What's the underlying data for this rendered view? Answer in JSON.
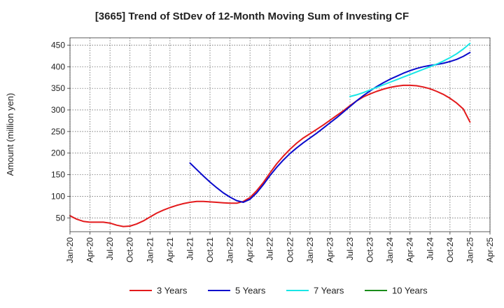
{
  "chart_data": {
    "type": "line",
    "title": "[3665]  Trend of StDev of 12-Month Moving Sum of Investing CF",
    "xlabel": "",
    "ylabel": "Amount (million yen)",
    "x_ticks": [
      "Jan-20",
      "Apr-20",
      "Jul-20",
      "Oct-20",
      "Jan-21",
      "Apr-21",
      "Jul-21",
      "Oct-21",
      "Jan-22",
      "Apr-22",
      "Jul-22",
      "Oct-22",
      "Jan-23",
      "Apr-23",
      "Jul-23",
      "Oct-23",
      "Jan-24",
      "Apr-24",
      "Jul-24",
      "Oct-24",
      "Jan-25",
      "Apr-25"
    ],
    "y_ticks": [
      50,
      100,
      150,
      200,
      250,
      300,
      350,
      400,
      450
    ],
    "xlim": [
      "2020-01",
      "2025-04"
    ],
    "ylim": [
      18,
      467
    ],
    "grid": true,
    "legend_position": "bottom",
    "series": [
      {
        "name": "3 Years",
        "color": "#e31a1c",
        "points": [
          [
            "2020-01",
            55
          ],
          [
            "2020-02",
            47
          ],
          [
            "2020-03",
            42
          ],
          [
            "2020-04",
            40
          ],
          [
            "2020-05",
            40
          ],
          [
            "2020-06",
            40
          ],
          [
            "2020-07",
            38
          ],
          [
            "2020-08",
            33
          ],
          [
            "2020-09",
            30
          ],
          [
            "2020-10",
            31
          ],
          [
            "2020-11",
            36
          ],
          [
            "2020-12",
            43
          ],
          [
            "2021-01",
            52
          ],
          [
            "2021-02",
            61
          ],
          [
            "2021-03",
            68
          ],
          [
            "2021-04",
            74
          ],
          [
            "2021-05",
            79
          ],
          [
            "2021-06",
            83
          ],
          [
            "2021-07",
            86
          ],
          [
            "2021-08",
            88
          ],
          [
            "2021-09",
            88
          ],
          [
            "2021-10",
            87
          ],
          [
            "2021-11",
            86
          ],
          [
            "2021-12",
            85
          ],
          [
            "2022-01",
            84
          ],
          [
            "2022-02",
            84
          ],
          [
            "2022-03",
            88
          ],
          [
            "2022-04",
            97
          ],
          [
            "2022-05",
            113
          ],
          [
            "2022-06",
            132
          ],
          [
            "2022-07",
            154
          ],
          [
            "2022-08",
            175
          ],
          [
            "2022-09",
            193
          ],
          [
            "2022-10",
            209
          ],
          [
            "2022-11",
            223
          ],
          [
            "2022-12",
            235
          ],
          [
            "2023-01",
            245
          ],
          [
            "2023-02",
            255
          ],
          [
            "2023-03",
            265
          ],
          [
            "2023-04",
            276
          ],
          [
            "2023-05",
            287
          ],
          [
            "2023-06",
            298
          ],
          [
            "2023-07",
            310
          ],
          [
            "2023-08",
            321
          ],
          [
            "2023-09",
            330
          ],
          [
            "2023-10",
            337
          ],
          [
            "2023-11",
            343
          ],
          [
            "2023-12",
            348
          ],
          [
            "2024-01",
            352
          ],
          [
            "2024-02",
            355
          ],
          [
            "2024-03",
            357
          ],
          [
            "2024-04",
            357
          ],
          [
            "2024-05",
            356
          ],
          [
            "2024-06",
            353
          ],
          [
            "2024-07",
            349
          ],
          [
            "2024-08",
            343
          ],
          [
            "2024-09",
            336
          ],
          [
            "2024-10",
            327
          ],
          [
            "2024-11",
            316
          ],
          [
            "2024-12",
            302
          ],
          [
            "2025-01",
            272
          ]
        ]
      },
      {
        "name": "5 Years",
        "color": "#0a0acc",
        "points": [
          [
            "2021-07",
            177
          ],
          [
            "2021-08",
            162
          ],
          [
            "2021-09",
            147
          ],
          [
            "2021-10",
            133
          ],
          [
            "2021-11",
            120
          ],
          [
            "2021-12",
            108
          ],
          [
            "2022-01",
            98
          ],
          [
            "2022-02",
            90
          ],
          [
            "2022-03",
            86
          ],
          [
            "2022-04",
            93
          ],
          [
            "2022-05",
            108
          ],
          [
            "2022-06",
            127
          ],
          [
            "2022-07",
            148
          ],
          [
            "2022-08",
            167
          ],
          [
            "2022-09",
            184
          ],
          [
            "2022-10",
            199
          ],
          [
            "2022-11",
            212
          ],
          [
            "2022-12",
            224
          ],
          [
            "2023-01",
            235
          ],
          [
            "2023-02",
            246
          ],
          [
            "2023-03",
            258
          ],
          [
            "2023-04",
            270
          ],
          [
            "2023-05",
            282
          ],
          [
            "2023-06",
            295
          ],
          [
            "2023-07",
            308
          ],
          [
            "2023-08",
            321
          ],
          [
            "2023-09",
            333
          ],
          [
            "2023-10",
            344
          ],
          [
            "2023-11",
            354
          ],
          [
            "2023-12",
            363
          ],
          [
            "2024-01",
            371
          ],
          [
            "2024-02",
            378
          ],
          [
            "2024-03",
            385
          ],
          [
            "2024-04",
            391
          ],
          [
            "2024-05",
            396
          ],
          [
            "2024-06",
            400
          ],
          [
            "2024-07",
            403
          ],
          [
            "2024-08",
            405
          ],
          [
            "2024-09",
            408
          ],
          [
            "2024-10",
            412
          ],
          [
            "2024-11",
            417
          ],
          [
            "2024-12",
            424
          ],
          [
            "2025-01",
            433
          ]
        ]
      },
      {
        "name": "7 Years",
        "color": "#19e6e6",
        "points": [
          [
            "2023-07",
            331
          ],
          [
            "2023-08",
            335
          ],
          [
            "2023-09",
            340
          ],
          [
            "2023-10",
            346
          ],
          [
            "2023-11",
            352
          ],
          [
            "2023-12",
            358
          ],
          [
            "2024-01",
            364
          ],
          [
            "2024-02",
            370
          ],
          [
            "2024-03",
            376
          ],
          [
            "2024-04",
            382
          ],
          [
            "2024-05",
            388
          ],
          [
            "2024-06",
            394
          ],
          [
            "2024-07",
            400
          ],
          [
            "2024-08",
            406
          ],
          [
            "2024-09",
            413
          ],
          [
            "2024-10",
            421
          ],
          [
            "2024-11",
            430
          ],
          [
            "2024-12",
            441
          ],
          [
            "2025-01",
            454
          ]
        ]
      },
      {
        "name": "10 Years",
        "color": "#1a8c1a",
        "points": []
      }
    ]
  }
}
